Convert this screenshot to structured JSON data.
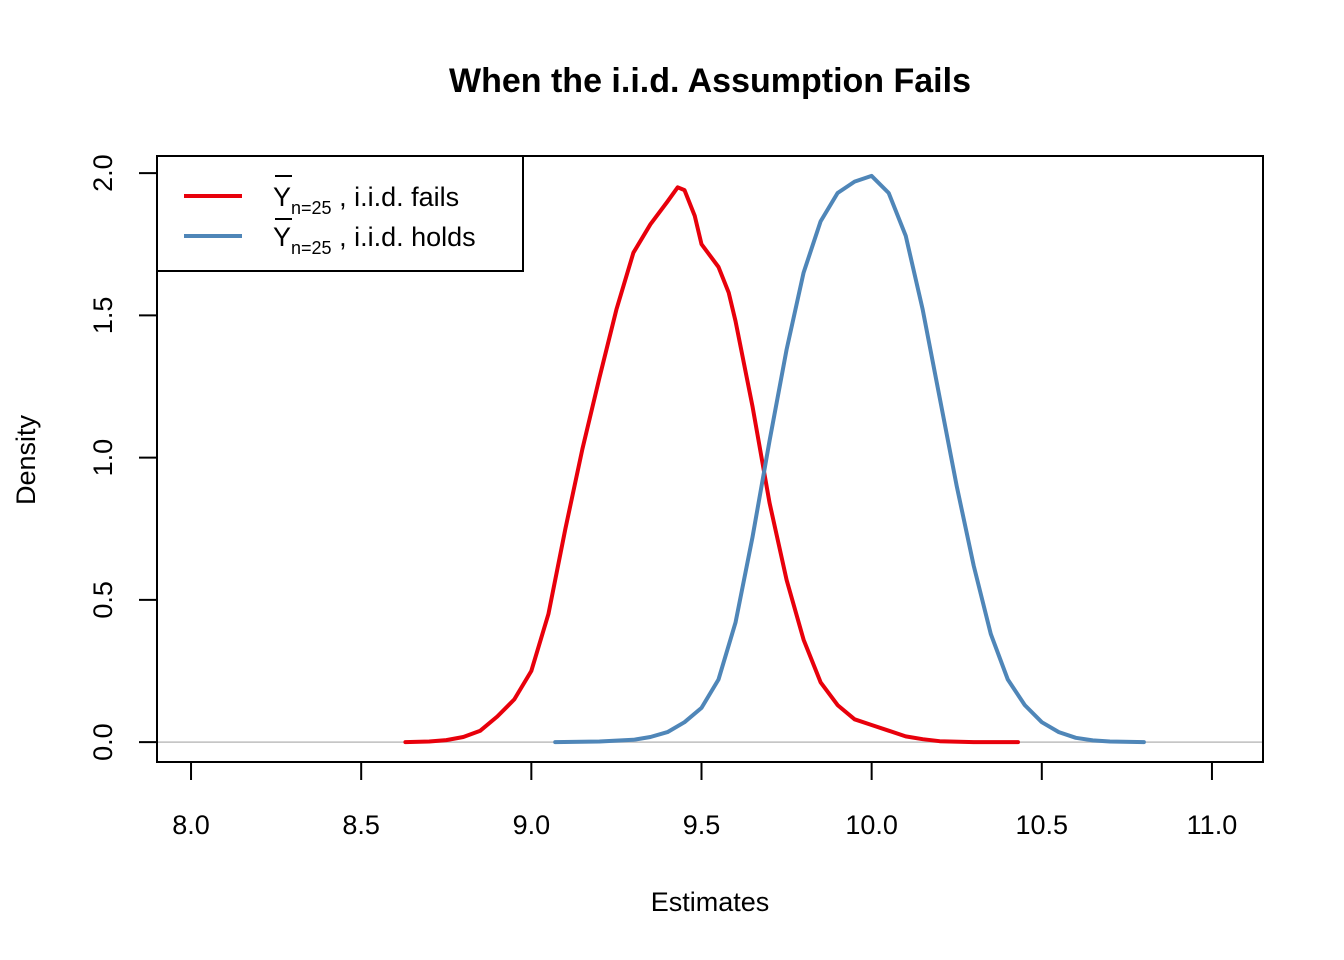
{
  "chart_data": {
    "type": "line",
    "title": "When the i.i.d. Assumption Fails",
    "xlabel": "Estimates",
    "ylabel": "Density",
    "xlim": [
      7.9,
      11.15
    ],
    "ylim": [
      -0.07,
      2.06
    ],
    "x_ticks": [
      8.0,
      8.5,
      9.0,
      9.5,
      10.0,
      10.5,
      11.0
    ],
    "x_tick_labels": [
      "8.0",
      "8.5",
      "9.0",
      "9.5",
      "10.0",
      "10.5",
      "11.0"
    ],
    "y_ticks": [
      0.0,
      0.5,
      1.0,
      1.5,
      2.0
    ],
    "y_tick_labels": [
      "0.0",
      "0.5",
      "1.0",
      "1.5",
      "2.0"
    ],
    "baseline": {
      "y": 0,
      "color": "#BEBEBE"
    },
    "legend": {
      "position": "top-left",
      "entries": [
        {
          "symbol": "Y",
          "subscript": "n=25",
          "text": " , i.i.d. fails",
          "color": "#E8000B"
        },
        {
          "symbol": "Y",
          "subscript": "n=25",
          "text": " , i.i.d. holds",
          "color": "#4F86B8"
        }
      ]
    },
    "series": [
      {
        "color": "#E8000B",
        "x": [
          8.63,
          8.7,
          8.75,
          8.8,
          8.85,
          8.9,
          8.95,
          9.0,
          9.05,
          9.1,
          9.15,
          9.2,
          9.25,
          9.3,
          9.35,
          9.4,
          9.43,
          9.45,
          9.48,
          9.5,
          9.55,
          9.58,
          9.6,
          9.65,
          9.7,
          9.75,
          9.8,
          9.85,
          9.9,
          9.95,
          10.0,
          10.05,
          10.1,
          10.15,
          10.2,
          10.3,
          10.43
        ],
        "y": [
          0.0,
          0.002,
          0.007,
          0.018,
          0.04,
          0.09,
          0.15,
          0.25,
          0.45,
          0.75,
          1.03,
          1.28,
          1.52,
          1.72,
          1.82,
          1.9,
          1.95,
          1.94,
          1.85,
          1.75,
          1.67,
          1.58,
          1.48,
          1.18,
          0.84,
          0.57,
          0.36,
          0.21,
          0.13,
          0.08,
          0.06,
          0.04,
          0.02,
          0.01,
          0.003,
          0.0,
          0.0
        ]
      },
      {
        "color": "#4F86B8",
        "x": [
          9.07,
          9.2,
          9.3,
          9.35,
          9.4,
          9.45,
          9.5,
          9.55,
          9.6,
          9.65,
          9.7,
          9.75,
          9.8,
          9.85,
          9.9,
          9.95,
          10.0,
          10.05,
          10.1,
          10.15,
          10.2,
          10.25,
          10.3,
          10.35,
          10.4,
          10.45,
          10.5,
          10.55,
          10.6,
          10.65,
          10.7,
          10.8
        ],
        "y": [
          0.0,
          0.002,
          0.008,
          0.018,
          0.035,
          0.07,
          0.12,
          0.22,
          0.42,
          0.72,
          1.06,
          1.38,
          1.65,
          1.83,
          1.93,
          1.97,
          1.99,
          1.93,
          1.78,
          1.52,
          1.21,
          0.9,
          0.62,
          0.38,
          0.22,
          0.13,
          0.07,
          0.035,
          0.015,
          0.006,
          0.002,
          0.0
        ]
      }
    ]
  }
}
